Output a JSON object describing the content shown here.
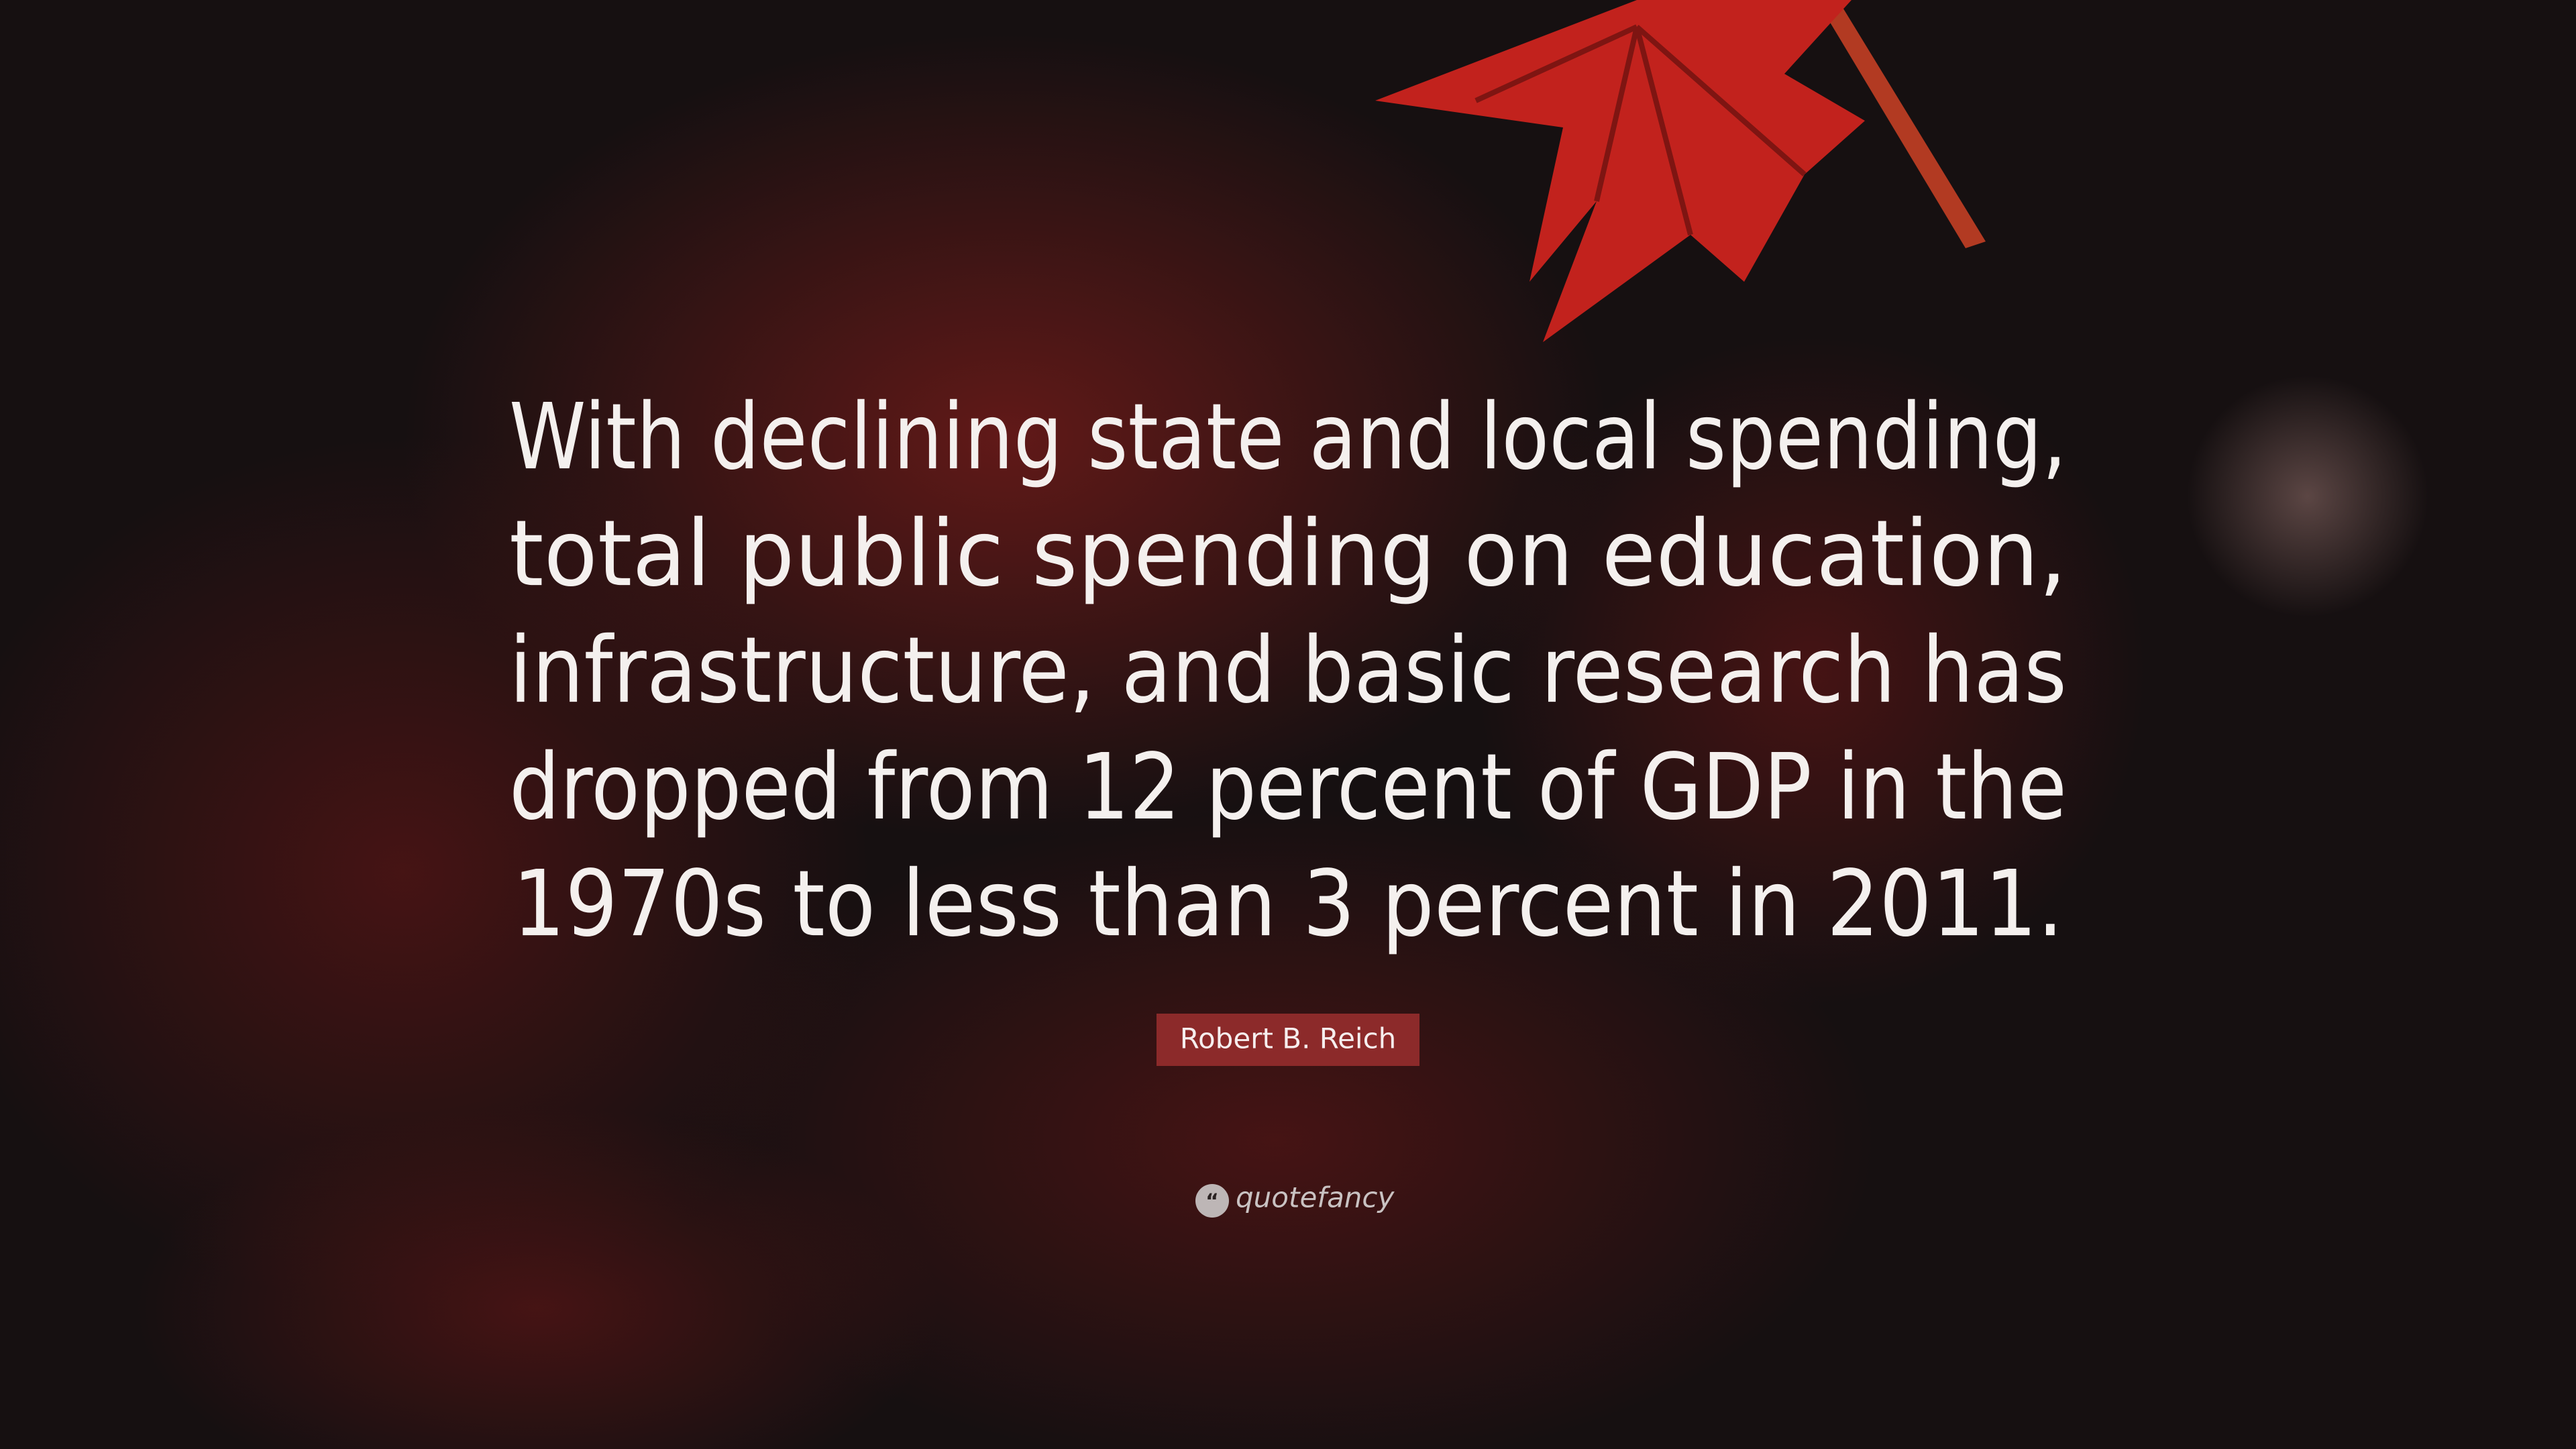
{
  "quote": {
    "lines": [
      "With declining state and local spending,",
      "total public spending on education,",
      "infrastructure, and basic research has",
      "dropped from 12 percent of GDP in the",
      "1970s to less than 3 percent in 2011."
    ]
  },
  "author": "Robert B. Reich",
  "brand": "quotefancy"
}
